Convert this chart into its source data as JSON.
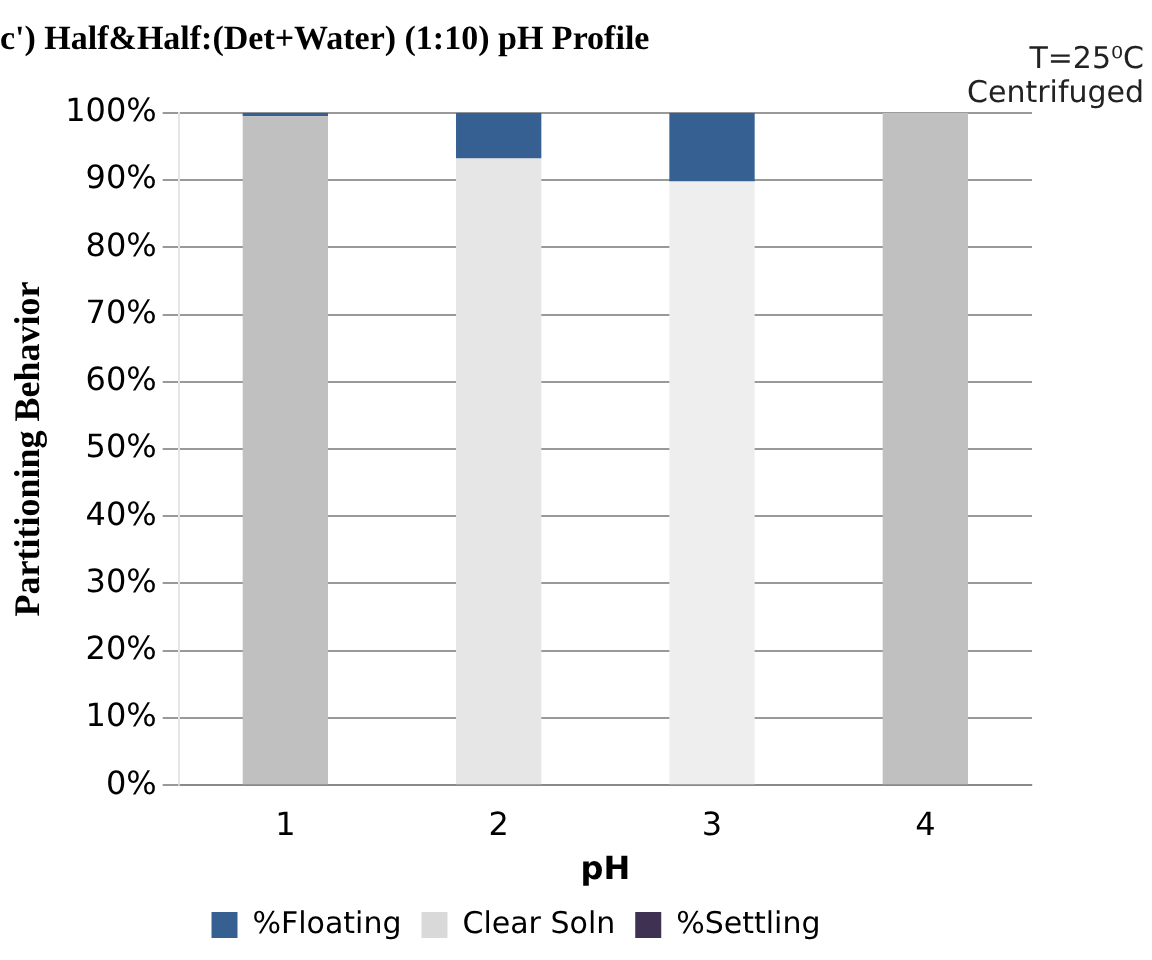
{
  "chart_data": {
    "type": "bar",
    "title": "c') Half&Half:(Det+Water) (1:10) pH Profile",
    "xlabel": "pH",
    "ylabel": "Partitioning Behavior",
    "annotations": [
      "T=25⁰C",
      "Centrifuged"
    ],
    "categories": [
      "1",
      "2",
      "3",
      "4"
    ],
    "stacked": true,
    "series": [
      {
        "name": "%Settling",
        "color": "#3f3151",
        "values": [
          0,
          0,
          0,
          0
        ]
      },
      {
        "name": "Clear Soln",
        "color": "#d9d9d9",
        "colors": [
          "#c0c0c0",
          "#e6e6e6",
          "#eeeeee",
          "#c0c0c0"
        ],
        "values": [
          99.5,
          93.2,
          89.8,
          100
        ]
      },
      {
        "name": "%Floating",
        "color": "#376092",
        "values": [
          0.5,
          6.8,
          10.2,
          0
        ]
      }
    ],
    "ylim": [
      0,
      100
    ],
    "yticks": [
      {
        "value": 0,
        "label": "0%"
      },
      {
        "value": 10,
        "label": "10%"
      },
      {
        "value": 20,
        "label": "20%"
      },
      {
        "value": 30,
        "label": "30%"
      },
      {
        "value": 40,
        "label": "40%"
      },
      {
        "value": 50,
        "label": "50%"
      },
      {
        "value": 60,
        "label": "60%"
      },
      {
        "value": 70,
        "label": "70%"
      },
      {
        "value": 80,
        "label": "80%"
      },
      {
        "value": 90,
        "label": "90%"
      },
      {
        "value": 100,
        "label": "100%"
      }
    ],
    "grid": "y",
    "legend": "bottom"
  }
}
